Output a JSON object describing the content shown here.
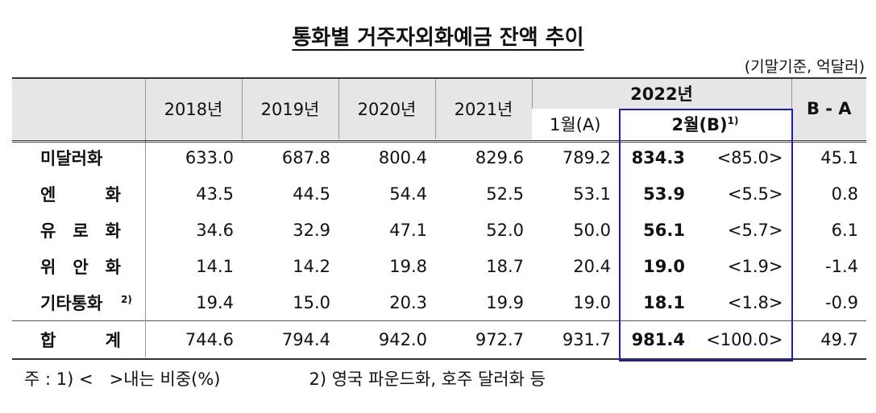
{
  "title": "통화별 거주자외화예금 잔액 추이",
  "unit": "(기말기준, 억달러)",
  "header": {
    "years": [
      "2018년",
      "2019년",
      "2020년",
      "2021년"
    ],
    "year_2022": "2022년",
    "jan": "1월(A)",
    "feb": "2월(B)",
    "feb_note": "1)",
    "diff": "B - A"
  },
  "rows": [
    {
      "label": "미달러화",
      "values": [
        "633.0",
        "687.8",
        "800.4",
        "829.6",
        "789.2",
        "834.3",
        "<85.0>",
        "45.1"
      ]
    },
    {
      "label": "엔 화",
      "values": [
        "43.5",
        "44.5",
        "54.4",
        "52.5",
        "53.1",
        "53.9",
        "<5.5>",
        "0.8"
      ]
    },
    {
      "label": "유 로 화",
      "values": [
        "34.6",
        "32.9",
        "47.1",
        "52.0",
        "50.0",
        "56.1",
        "<5.7>",
        "6.1"
      ]
    },
    {
      "label": "위 안 화",
      "values": [
        "14.1",
        "14.2",
        "19.8",
        "18.7",
        "20.4",
        "19.0",
        "<1.9>",
        "-1.4"
      ]
    },
    {
      "label": "기타통화",
      "note": "2)",
      "values": [
        "19.4",
        "15.0",
        "20.3",
        "19.9",
        "19.0",
        "18.1",
        "<1.8>",
        "-0.9"
      ]
    },
    {
      "label": "합 계",
      "values": [
        "744.6",
        "794.4",
        "942.0",
        "972.7",
        "931.7",
        "981.4",
        "<100.0>",
        "49.7"
      ]
    }
  ],
  "notes": [
    "주 : 1) <   >내는 비중(%)",
    "2) 영국 파운드화, 호주 달러화 등"
  ]
}
